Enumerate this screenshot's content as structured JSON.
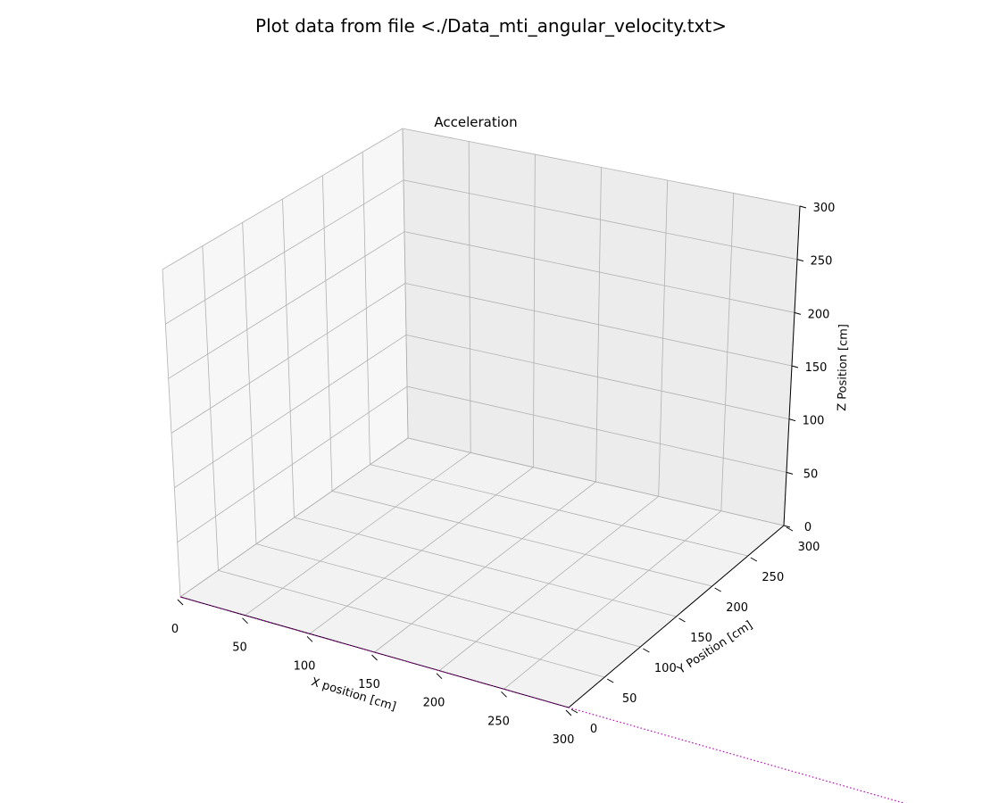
{
  "figure": {
    "title": "Plot data from file <./Data_mti_angular_velocity.txt>"
  },
  "chart_data": {
    "type": "line",
    "projection": "3d",
    "title": "Acceleration",
    "xlabel": "X position [cm]",
    "ylabel": "Y Position [cm]",
    "zlabel": "Z Position [cm]",
    "xlim": [
      0,
      300
    ],
    "ylim": [
      0,
      300
    ],
    "zlim": [
      0,
      300
    ],
    "x_ticks": [
      0,
      50,
      100,
      150,
      200,
      250,
      300
    ],
    "y_ticks": [
      0,
      50,
      100,
      150,
      200,
      250,
      300
    ],
    "z_ticks": [
      0,
      50,
      100,
      150,
      200,
      250,
      300
    ],
    "grid": true,
    "series": [
      {
        "line_style": "dotted",
        "color": "#bf00bf",
        "points": [
          {
            "x": 0,
            "y": 0,
            "z": 0
          },
          {
            "x": 600,
            "y": 0,
            "z": 0
          }
        ]
      }
    ]
  }
}
